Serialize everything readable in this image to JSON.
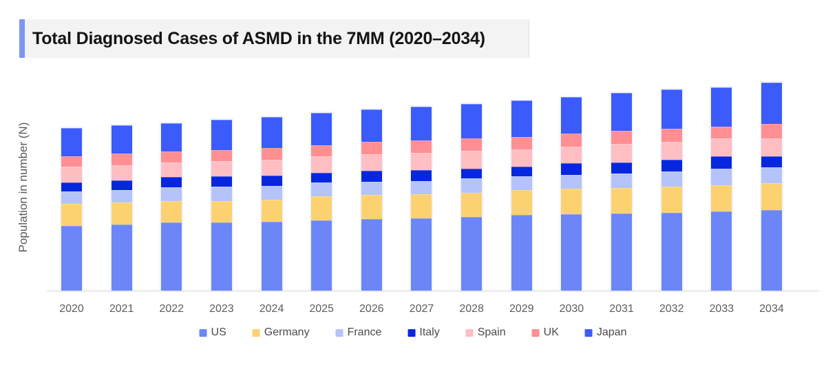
{
  "title": {
    "text": "Total Diagnosed Cases of ASMD in the 7MM (2020–2034)"
  },
  "chart_data": {
    "type": "bar",
    "stacked": true,
    "title": "Total Diagnosed Cases of ASMD in the 7MM (2020–2034)",
    "xlabel": "",
    "ylabel": "Population in number (N)",
    "units": "relative (no numeric y-axis ticks shown)",
    "ylim": [
      0,
      320
    ],
    "grid": false,
    "y_ticks_visible": false,
    "legend_position": "bottom",
    "categories": [
      "2020",
      "2021",
      "2022",
      "2023",
      "2024",
      "2025",
      "2026",
      "2027",
      "2028",
      "2029",
      "2030",
      "2031",
      "2032",
      "2033",
      "2034"
    ],
    "series": [
      {
        "name": "US",
        "color": "#6C86F7",
        "values": [
          94,
          96,
          99,
          99,
          100,
          102,
          104,
          105,
          107,
          110,
          111,
          112,
          113,
          115,
          117
        ]
      },
      {
        "name": "Germany",
        "color": "#FCD271",
        "values": [
          32,
          32,
          31,
          31,
          32,
          35,
          35,
          35,
          35,
          36,
          37,
          37,
          38,
          38,
          39
        ]
      },
      {
        "name": "France",
        "color": "#B4C3FA",
        "values": [
          18,
          18,
          20,
          21,
          20,
          20,
          19,
          19,
          21,
          20,
          20,
          21,
          22,
          24,
          23
        ]
      },
      {
        "name": "Italy",
        "color": "#0727DF",
        "values": [
          13,
          14,
          15,
          15,
          15,
          14,
          16,
          16,
          14,
          14,
          17,
          16,
          17,
          18,
          16
        ]
      },
      {
        "name": "Spain",
        "color": "#FFBEC2",
        "values": [
          23,
          22,
          21,
          22,
          23,
          24,
          24,
          25,
          26,
          25,
          24,
          27,
          26,
          26,
          26
        ]
      },
      {
        "name": "UK",
        "color": "#FF8F92",
        "values": [
          15,
          17,
          16,
          16,
          17,
          16,
          18,
          18,
          18,
          18,
          19,
          19,
          19,
          17,
          21
        ]
      },
      {
        "name": "Japan",
        "color": "#3B5BFA",
        "values": [
          41,
          41,
          41,
          44,
          45,
          47,
          47,
          49,
          50,
          53,
          53,
          55,
          57,
          57,
          60
        ]
      }
    ]
  },
  "style": {
    "title_accent_color": "#7D95F2",
    "title_bg_color": "#F3F3F4",
    "axis_text_color": "#595959",
    "baseline_color": "#EDEEF1"
  }
}
